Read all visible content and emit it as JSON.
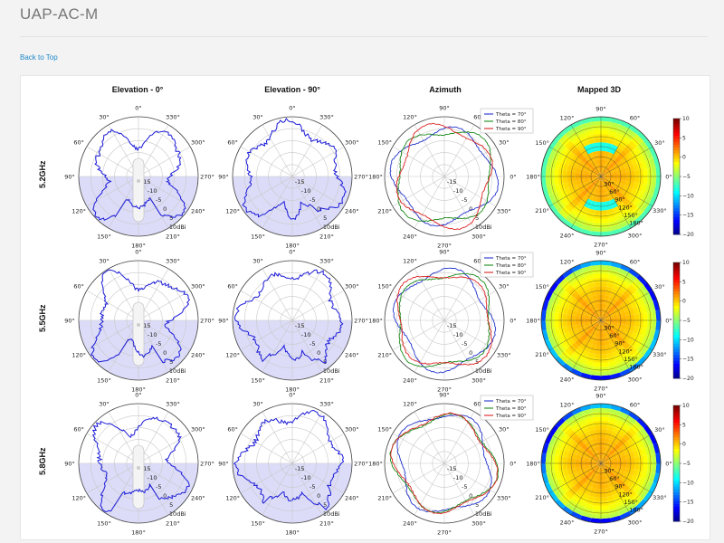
{
  "page": {
    "title": "UAP-AC-M",
    "back_link": "Back to Top"
  },
  "columns": [
    "Elevation - 0°",
    "Elevation - 90°",
    "Azimuth",
    "Mapped 3D"
  ],
  "rows": [
    "5.2GHz",
    "5.5GHz",
    "5.8GHz"
  ],
  "polar": {
    "elevation_angles": [
      "0°",
      "330°",
      "300°",
      "270°",
      "240°",
      "210°",
      "180°",
      "150°",
      "120°",
      "90°",
      "60°",
      "30°"
    ],
    "azimuth_angles": [
      "90°",
      "60°",
      "30°",
      "0°",
      "330°",
      "300°",
      "270°",
      "240°",
      "210°",
      "180°",
      "150°",
      "120°"
    ],
    "radial_labels": [
      "-15",
      "-10",
      "-5",
      "0",
      "5",
      "10dBi"
    ],
    "mapped_radial_labels": [
      "30°",
      "60°",
      "90°",
      "120°",
      "150°",
      "180°"
    ],
    "legend": [
      "Theta = 70°",
      "Theta = 80°",
      "Theta = 90°"
    ],
    "colorbar_ticks": [
      "10",
      "5",
      "0",
      "−5",
      "−10",
      "−15",
      "−20"
    ]
  },
  "colors": {
    "pattern_line": "#1a1ad8",
    "lower_half_fill": "#dcdcf8",
    "theta_70": "#2233cc",
    "theta_80": "#1a8a1a",
    "theta_90": "#dd2222",
    "link": "#1f87c8"
  }
}
